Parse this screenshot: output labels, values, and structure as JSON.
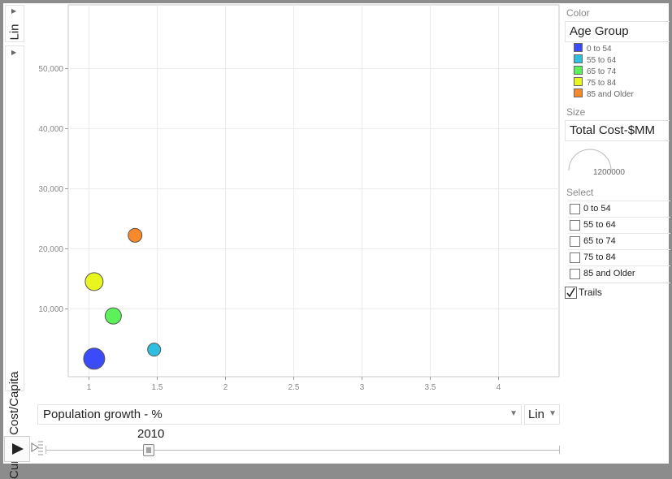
{
  "y_scale_dropdown": {
    "value": "Lin",
    "arrow": "▶"
  },
  "y_axis_title": "Current Cost/Capita",
  "x_axis_dropdown": {
    "value": "Population growth - %",
    "arrow": "▼"
  },
  "x_scale_dropdown": {
    "value": "Lin",
    "arrow": "▼"
  },
  "color_panel": {
    "heading": "Color",
    "value": "Age Group",
    "items": [
      {
        "label": "0 to 54",
        "color": "#3a4bf7"
      },
      {
        "label": "55 to 64",
        "color": "#2fbde0"
      },
      {
        "label": "65 to 74",
        "color": "#5cf05a"
      },
      {
        "label": "75 to 84",
        "color": "#e8f51f"
      },
      {
        "label": "85 and Older",
        "color": "#f8892b"
      }
    ]
  },
  "size_panel": {
    "heading": "Size",
    "value": "Total Cost-$MM",
    "scale_label": "1200000"
  },
  "select_panel": {
    "heading": "Select",
    "items": [
      "0 to 54",
      "55 to 64",
      "65 to 74",
      "75 to 84",
      "85 and Older"
    ],
    "trails_label": "Trails",
    "trails_checked": true
  },
  "timeline": {
    "year": "2010",
    "progress": 0.2
  },
  "icons": {
    "play": "play-icon",
    "speed": "speed-icon"
  },
  "chart_data": {
    "type": "scatter",
    "title": "",
    "xlabel": "Population growth - %",
    "ylabel": "Current Cost/Capita",
    "xlim": [
      0.85,
      4.45
    ],
    "ylim": [
      -1300,
      60500
    ],
    "x_ticks": [
      1,
      1.5,
      2,
      2.5,
      3,
      3.5,
      4
    ],
    "x_tick_labels": [
      "1",
      "1.5",
      "2",
      "2.5",
      "3",
      "3.5",
      "4"
    ],
    "y_ticks": [
      10000,
      20000,
      30000,
      40000,
      50000
    ],
    "y_tick_labels": [
      "10,000",
      "20,000",
      "30,000",
      "40,000",
      "50,000"
    ],
    "grid": true,
    "series": [
      {
        "name": "0 to 54",
        "color": "#3a4bf7",
        "x": 1.04,
        "y": 1700,
        "size": 13
      },
      {
        "name": "55 to 64",
        "color": "#2fbde0",
        "x": 1.48,
        "y": 3200,
        "size": 8
      },
      {
        "name": "65 to 74",
        "color": "#5cf05a",
        "x": 1.18,
        "y": 8800,
        "size": 10
      },
      {
        "name": "75 to 84",
        "color": "#e8f51f",
        "x": 1.04,
        "y": 14500,
        "size": 11
      },
      {
        "name": "85 and Older",
        "color": "#f8892b",
        "x": 1.34,
        "y": 22200,
        "size": 8.5
      }
    ]
  }
}
